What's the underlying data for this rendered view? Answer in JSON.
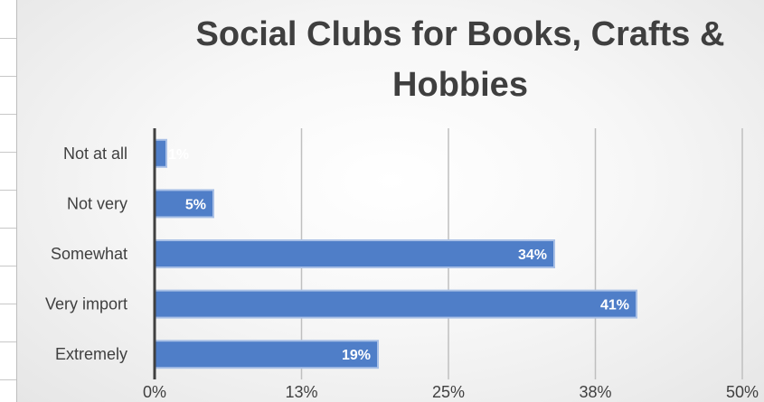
{
  "chart_data": {
    "type": "bar",
    "orientation": "horizontal",
    "title": "Social Clubs for Books, Crafts & Hobbies",
    "categories": [
      "Not at all",
      "Not very",
      "Somewhat",
      "Very import",
      "Extremely"
    ],
    "values": [
      1,
      5,
      34,
      41,
      19
    ],
    "data_labels": [
      "1%",
      "5%",
      "34%",
      "41%",
      "19%"
    ],
    "x_ticks": [
      "0%",
      "13%",
      "25%",
      "38%",
      "50%"
    ],
    "xlim": [
      0,
      50
    ],
    "xlabel": "",
    "ylabel": "",
    "grid": true,
    "bar_color": "#4f7ec8",
    "bar_edge_color": "#a9c0e6"
  }
}
